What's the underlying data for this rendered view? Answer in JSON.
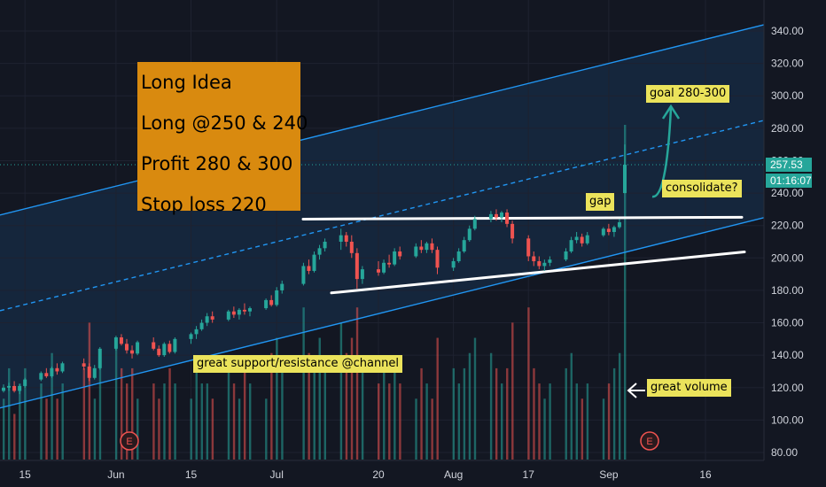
{
  "chart_data": {
    "type": "candlestick",
    "title": "",
    "x_ticks": [
      "15",
      "Jun",
      "15",
      "Jul",
      "20",
      "Aug",
      "17",
      "Sep",
      "16"
    ],
    "y_ticks": [
      "80.00",
      "100.00",
      "120.00",
      "140.00",
      "160.00",
      "180.00",
      "200.00",
      "220.00",
      "240.00",
      "260.00",
      "280.00",
      "300.00",
      "320.00",
      "340.00"
    ],
    "ylim": [
      80,
      340
    ],
    "current_price": "257.53",
    "countdown": "01:16:07",
    "ohlc": [
      {
        "date": "May 11",
        "o": 118,
        "h": 122,
        "l": 117,
        "c": 120
      },
      {
        "date": "May 12",
        "o": 120,
        "h": 123,
        "l": 118,
        "c": 121
      },
      {
        "date": "May 13",
        "o": 121,
        "h": 124,
        "l": 117,
        "c": 118
      },
      {
        "date": "May 14",
        "o": 118,
        "h": 122,
        "l": 116,
        "c": 121
      },
      {
        "date": "May 15",
        "o": 121,
        "h": 126,
        "l": 120,
        "c": 125
      },
      {
        "date": "May 18",
        "o": 125,
        "h": 130,
        "l": 124,
        "c": 129
      },
      {
        "date": "May 19",
        "o": 129,
        "h": 132,
        "l": 126,
        "c": 127
      },
      {
        "date": "May 20",
        "o": 127,
        "h": 133,
        "l": 126,
        "c": 132
      },
      {
        "date": "May 21",
        "o": 132,
        "h": 135,
        "l": 128,
        "c": 130
      },
      {
        "date": "May 22",
        "o": 130,
        "h": 136,
        "l": 129,
        "c": 135
      },
      {
        "date": "May 26",
        "o": 135,
        "h": 138,
        "l": 131,
        "c": 133
      },
      {
        "date": "May 27",
        "o": 133,
        "h": 135,
        "l": 124,
        "c": 126
      },
      {
        "date": "May 28",
        "o": 126,
        "h": 134,
        "l": 125,
        "c": 132
      },
      {
        "date": "May 29",
        "o": 132,
        "h": 145,
        "l": 131,
        "c": 144
      },
      {
        "date": "Jun 1",
        "o": 144,
        "h": 152,
        "l": 143,
        "c": 151
      },
      {
        "date": "Jun 2",
        "o": 151,
        "h": 153,
        "l": 146,
        "c": 147
      },
      {
        "date": "Jun 3",
        "o": 147,
        "h": 150,
        "l": 141,
        "c": 143
      },
      {
        "date": "Jun 4",
        "o": 143,
        "h": 146,
        "l": 138,
        "c": 141
      },
      {
        "date": "Jun 5",
        "o": 141,
        "h": 149,
        "l": 140,
        "c": 148
      },
      {
        "date": "Jun 8",
        "o": 148,
        "h": 151,
        "l": 143,
        "c": 144
      },
      {
        "date": "Jun 9",
        "o": 144,
        "h": 146,
        "l": 139,
        "c": 140
      },
      {
        "date": "Jun 10",
        "o": 140,
        "h": 148,
        "l": 139,
        "c": 147
      },
      {
        "date": "Jun 11",
        "o": 147,
        "h": 149,
        "l": 141,
        "c": 142
      },
      {
        "date": "Jun 12",
        "o": 142,
        "h": 151,
        "l": 141,
        "c": 150
      },
      {
        "date": "Jun 15",
        "o": 150,
        "h": 154,
        "l": 147,
        "c": 153
      },
      {
        "date": "Jun 16",
        "o": 153,
        "h": 158,
        "l": 150,
        "c": 156
      },
      {
        "date": "Jun 17",
        "o": 156,
        "h": 162,
        "l": 155,
        "c": 160
      },
      {
        "date": "Jun 18",
        "o": 160,
        "h": 166,
        "l": 158,
        "c": 164
      },
      {
        "date": "Jun 19",
        "o": 164,
        "h": 167,
        "l": 160,
        "c": 162
      },
      {
        "date": "Jun 22",
        "o": 162,
        "h": 168,
        "l": 161,
        "c": 167
      },
      {
        "date": "Jun 23",
        "o": 167,
        "h": 170,
        "l": 163,
        "c": 165
      },
      {
        "date": "Jun 24",
        "o": 165,
        "h": 169,
        "l": 162,
        "c": 168
      },
      {
        "date": "Jun 25",
        "o": 168,
        "h": 172,
        "l": 165,
        "c": 167
      },
      {
        "date": "Jun 26",
        "o": 167,
        "h": 170,
        "l": 164,
        "c": 169
      },
      {
        "date": "Jun 29",
        "o": 169,
        "h": 175,
        "l": 168,
        "c": 174
      },
      {
        "date": "Jun 30",
        "o": 174,
        "h": 177,
        "l": 170,
        "c": 171
      },
      {
        "date": "Jul 1",
        "o": 171,
        "h": 182,
        "l": 170,
        "c": 180
      },
      {
        "date": "Jul 2",
        "o": 180,
        "h": 186,
        "l": 178,
        "c": 184
      },
      {
        "date": "Jul 6",
        "o": 184,
        "h": 197,
        "l": 183,
        "c": 195
      },
      {
        "date": "Jul 7",
        "o": 195,
        "h": 199,
        "l": 190,
        "c": 192
      },
      {
        "date": "Jul 8",
        "o": 192,
        "h": 204,
        "l": 191,
        "c": 202
      },
      {
        "date": "Jul 9",
        "o": 202,
        "h": 208,
        "l": 199,
        "c": 206
      },
      {
        "date": "Jul 10",
        "o": 206,
        "h": 212,
        "l": 204,
        "c": 210
      },
      {
        "date": "Jul 13",
        "o": 210,
        "h": 218,
        "l": 205,
        "c": 214
      },
      {
        "date": "Jul 14",
        "o": 214,
        "h": 216,
        "l": 207,
        "c": 210
      },
      {
        "date": "Jul 15",
        "o": 210,
        "h": 214,
        "l": 200,
        "c": 203
      },
      {
        "date": "Jul 16",
        "o": 203,
        "h": 206,
        "l": 181,
        "c": 187
      },
      {
        "date": "Jul 17",
        "o": 187,
        "h": 195,
        "l": 184,
        "c": 193
      },
      {
        "date": "Jul 20",
        "o": 193,
        "h": 198,
        "l": 189,
        "c": 191
      },
      {
        "date": "Jul 21",
        "o": 191,
        "h": 199,
        "l": 190,
        "c": 197
      },
      {
        "date": "Jul 22",
        "o": 197,
        "h": 202,
        "l": 194,
        "c": 196
      },
      {
        "date": "Jul 23",
        "o": 196,
        "h": 206,
        "l": 195,
        "c": 204
      },
      {
        "date": "Jul 24",
        "o": 204,
        "h": 207,
        "l": 199,
        "c": 201
      },
      {
        "date": "Jul 27",
        "o": 201,
        "h": 209,
        "l": 200,
        "c": 207
      },
      {
        "date": "Jul 28",
        "o": 207,
        "h": 211,
        "l": 203,
        "c": 205
      },
      {
        "date": "Jul 29",
        "o": 205,
        "h": 210,
        "l": 203,
        "c": 209
      },
      {
        "date": "Jul 30",
        "o": 209,
        "h": 212,
        "l": 203,
        "c": 205
      },
      {
        "date": "Jul 31",
        "o": 205,
        "h": 207,
        "l": 190,
        "c": 194
      },
      {
        "date": "Aug 3",
        "o": 194,
        "h": 200,
        "l": 192,
        "c": 198
      },
      {
        "date": "Aug 4",
        "o": 198,
        "h": 206,
        "l": 197,
        "c": 204
      },
      {
        "date": "Aug 5",
        "o": 204,
        "h": 213,
        "l": 203,
        "c": 211
      },
      {
        "date": "Aug 6",
        "o": 211,
        "h": 220,
        "l": 210,
        "c": 218
      },
      {
        "date": "Aug 7",
        "o": 218,
        "h": 226,
        "l": 217,
        "c": 224
      },
      {
        "date": "Aug 10",
        "o": 224,
        "h": 229,
        "l": 222,
        "c": 227
      },
      {
        "date": "Aug 11",
        "o": 227,
        "h": 230,
        "l": 223,
        "c": 225
      },
      {
        "date": "Aug 12",
        "o": 225,
        "h": 229,
        "l": 222,
        "c": 228
      },
      {
        "date": "Aug 13",
        "o": 228,
        "h": 230,
        "l": 219,
        "c": 221
      },
      {
        "date": "Aug 14",
        "o": 221,
        "h": 223,
        "l": 209,
        "c": 212
      },
      {
        "date": "Aug 17",
        "o": 212,
        "h": 214,
        "l": 198,
        "c": 201
      },
      {
        "date": "Aug 18",
        "o": 201,
        "h": 204,
        "l": 195,
        "c": 198
      },
      {
        "date": "Aug 19",
        "o": 198,
        "h": 201,
        "l": 193,
        "c": 195
      },
      {
        "date": "Aug 20",
        "o": 195,
        "h": 199,
        "l": 192,
        "c": 197
      },
      {
        "date": "Aug 21",
        "o": 197,
        "h": 201,
        "l": 195,
        "c": 199
      },
      {
        "date": "Aug 24",
        "o": 199,
        "h": 206,
        "l": 198,
        "c": 204
      },
      {
        "date": "Aug 25",
        "o": 204,
        "h": 213,
        "l": 203,
        "c": 211
      },
      {
        "date": "Aug 26",
        "o": 211,
        "h": 216,
        "l": 209,
        "c": 213
      },
      {
        "date": "Aug 27",
        "o": 213,
        "h": 215,
        "l": 207,
        "c": 209
      },
      {
        "date": "Aug 28",
        "o": 209,
        "h": 216,
        "l": 208,
        "c": 214
      },
      {
        "date": "Aug 31",
        "o": 214,
        "h": 219,
        "l": 213,
        "c": 218
      },
      {
        "date": "Sep 1",
        "o": 218,
        "h": 221,
        "l": 214,
        "c": 216
      },
      {
        "date": "Sep 2",
        "o": 216,
        "h": 220,
        "l": 213,
        "c": 219
      },
      {
        "date": "Sep 3",
        "o": 219,
        "h": 224,
        "l": 218,
        "c": 222
      },
      {
        "date": "Sep 4",
        "o": 240,
        "h": 270,
        "l": 240,
        "c": 257.53
      }
    ],
    "volume": [
      2,
      3,
      1.5,
      2.5,
      3,
      2.5,
      2,
      3.5,
      2,
      2.5,
      3,
      4.5,
      2,
      3.5,
      4,
      3,
      2.5,
      3,
      2,
      2.5,
      2,
      2.5,
      3,
      2.5,
      2,
      3,
      2.5,
      2.5,
      2,
      3,
      2.5,
      2,
      3,
      2.5,
      2,
      3.5,
      4,
      3,
      5,
      3.5,
      3,
      4,
      3,
      4.5,
      3.5,
      4,
      5,
      3,
      2.5,
      3,
      2.5,
      3,
      2.5,
      2,
      3,
      2.5,
      2,
      4,
      3,
      2.5,
      3,
      3.5,
      4,
      3.5,
      3,
      2.5,
      3,
      4.5,
      5,
      3,
      2.5,
      2,
      2.5,
      3,
      3.5,
      2.5,
      2,
      2.5,
      2,
      2.5,
      3,
      3.5,
      11
    ],
    "channel": {
      "lower": {
        "from": {
          "date": "May 11",
          "value": 108
        },
        "to": {
          "date": "Sep 18",
          "value": 215
        }
      },
      "middle_dashed": {
        "from": {
          "date": "May 11",
          "value": 168
        },
        "to": {
          "date": "Sep 18",
          "value": 275
        }
      },
      "upper": {
        "from": {
          "date": "May 11",
          "value": 227
        },
        "to": {
          "date": "Sep 18",
          "value": 334
        }
      }
    },
    "trendlines": [
      {
        "from": {
          "date": "Jul 10",
          "value": 224
        },
        "to": {
          "date": "Sep 18",
          "value": 225
        }
      },
      {
        "from": {
          "date": "Jul 16",
          "value": 180
        },
        "to": {
          "date": "Sep 18",
          "value": 201
        }
      }
    ],
    "earnings_markers": [
      "E",
      "E"
    ]
  },
  "annotations": {
    "idea_box": {
      "lines": [
        "Long Idea",
        "Long @250 & 240",
        "Profit 280 & 300",
        "Stop loss 220"
      ]
    },
    "labels": {
      "goal": "goal 280-300",
      "consolidate": "consolidate?",
      "gap": "gap",
      "support": "great support/resistance @channel",
      "volume": "great volume"
    }
  },
  "colors": {
    "background": "#131722",
    "up": "#26a69a",
    "down": "#ef5350",
    "channel": "#2196f3",
    "idea_box": "#d98a0f",
    "label": "#ebe35b",
    "price_tag": "#26a69a"
  }
}
